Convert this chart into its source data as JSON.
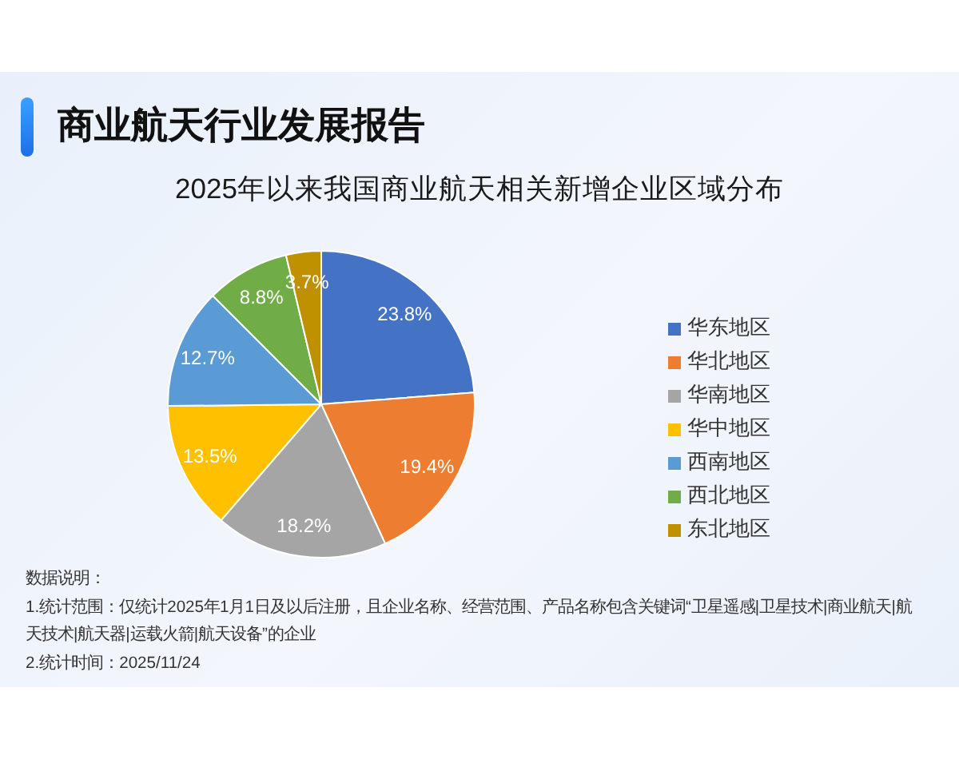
{
  "chart_data": {
    "type": "pie",
    "title": "商业航天行业发展报告",
    "subtitle": "2025年以来我国商业航天相关新增企业区域分布",
    "categories": [
      "华东地区",
      "华北地区",
      "华南地区",
      "华中地区",
      "西南地区",
      "西北地区",
      "东北地区"
    ],
    "values": [
      23.8,
      19.4,
      18.2,
      13.5,
      12.7,
      8.8,
      3.7
    ],
    "colors": [
      "#4472c4",
      "#ed7d31",
      "#a5a5a5",
      "#ffc000",
      "#5b9bd5",
      "#70ad47",
      "#bf9000"
    ],
    "value_labels": [
      "23.8%",
      "19.4%",
      "18.2%",
      "13.5%",
      "12.7%",
      "8.8%",
      "3.7%"
    ],
    "legend": "right",
    "annotations": [
      "数据说明：",
      "1.统计范围：仅统计2025年1月1日及以后注册，且企业名称、经营范围、产品名称包含关键词“卫星遥感|卫星技术|商业航天|航天技术|航天器|运载火箭|航天设备”的企业",
      "2.统计时间：2025/11/24"
    ]
  }
}
